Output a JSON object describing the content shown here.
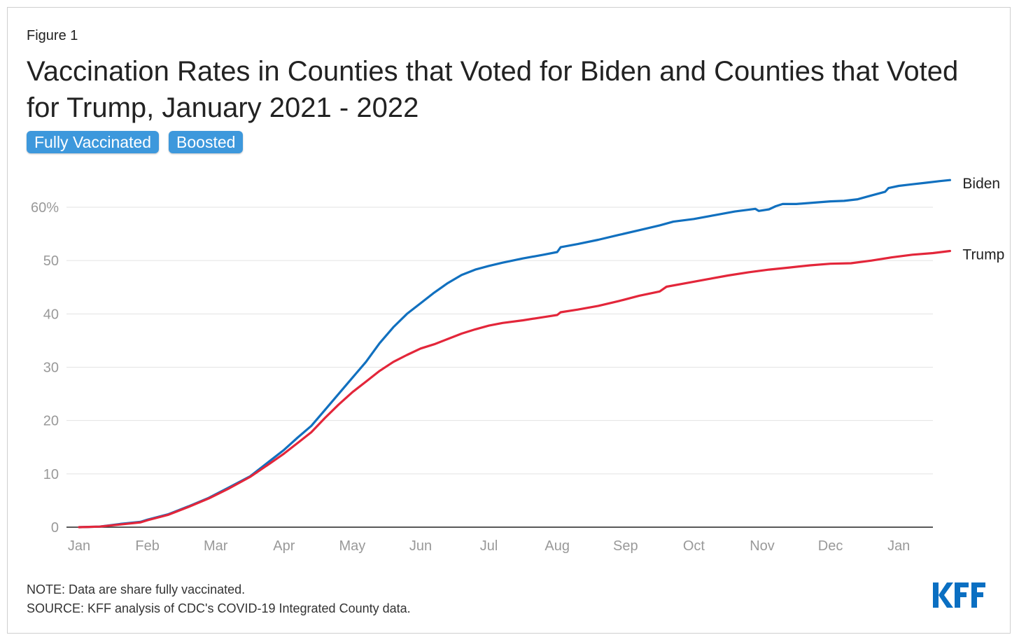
{
  "figure_label": "Figure 1",
  "tabs": [
    {
      "label": "Fully Vaccinated"
    },
    {
      "label": "Boosted"
    }
  ],
  "notes": {
    "note": "NOTE: Data are share fully vaccinated.",
    "source": "SOURCE: KFF analysis of CDC's COVID-19 Integrated County data."
  },
  "logo": {
    "text": "KFF",
    "color": "#0a6fc2"
  },
  "colors": {
    "biden": "#1170bf",
    "trump": "#e3263a",
    "grid": "#e3e3e3",
    "axis": "#222222",
    "tick": "#999999"
  },
  "chart_data": {
    "type": "line",
    "title": "Vaccination Rates in Counties that Voted for Biden and Counties that Voted for Trump, January 2021 - 2022",
    "xlabel": "",
    "ylabel": "",
    "ylim": [
      0,
      60
    ],
    "yticks": [
      {
        "value": 0,
        "label": "0"
      },
      {
        "value": 10,
        "label": "10"
      },
      {
        "value": 20,
        "label": "20"
      },
      {
        "value": 30,
        "label": "30"
      },
      {
        "value": 40,
        "label": "40"
      },
      {
        "value": 50,
        "label": "50"
      },
      {
        "value": 60,
        "label": "60%"
      }
    ],
    "xticks": [
      "Jan",
      "Feb",
      "Mar",
      "Apr",
      "May",
      "Jun",
      "Jul",
      "Aug",
      "Sep",
      "Oct",
      "Nov",
      "Dec",
      "Jan"
    ],
    "x_unit": "months since Jan 2021",
    "grid": true,
    "legend": "end-of-line labels",
    "series": [
      {
        "name": "Biden",
        "color": "#1170bf",
        "points": [
          [
            0,
            0
          ],
          [
            0.3,
            0.1
          ],
          [
            0.6,
            0.6
          ],
          [
            0.9,
            1.0
          ],
          [
            1.0,
            1.4
          ],
          [
            1.3,
            2.4
          ],
          [
            1.6,
            3.9
          ],
          [
            1.9,
            5.5
          ],
          [
            2.2,
            7.5
          ],
          [
            2.5,
            9.5
          ],
          [
            2.8,
            12.5
          ],
          [
            3.0,
            14.5
          ],
          [
            3.2,
            16.8
          ],
          [
            3.4,
            19.0
          ],
          [
            3.6,
            22.0
          ],
          [
            3.8,
            25.0
          ],
          [
            4.0,
            28.0
          ],
          [
            4.2,
            31.0
          ],
          [
            4.4,
            34.5
          ],
          [
            4.6,
            37.5
          ],
          [
            4.8,
            40.0
          ],
          [
            5.0,
            42.0
          ],
          [
            5.2,
            44.0
          ],
          [
            5.4,
            45.8
          ],
          [
            5.6,
            47.3
          ],
          [
            5.8,
            48.3
          ],
          [
            6.0,
            49.0
          ],
          [
            6.2,
            49.6
          ],
          [
            6.5,
            50.4
          ],
          [
            6.8,
            51.1
          ],
          [
            7.0,
            51.6
          ],
          [
            7.05,
            52.5
          ],
          [
            7.3,
            53.1
          ],
          [
            7.6,
            53.9
          ],
          [
            7.9,
            54.8
          ],
          [
            8.2,
            55.7
          ],
          [
            8.5,
            56.6
          ],
          [
            8.7,
            57.3
          ],
          [
            9.0,
            57.8
          ],
          [
            9.3,
            58.5
          ],
          [
            9.6,
            59.2
          ],
          [
            9.9,
            59.7
          ],
          [
            9.95,
            59.3
          ],
          [
            10.1,
            59.6
          ],
          [
            10.2,
            60.2
          ],
          [
            10.3,
            60.6
          ],
          [
            10.5,
            60.6
          ],
          [
            10.8,
            60.9
          ],
          [
            11.0,
            61.1
          ],
          [
            11.2,
            61.2
          ],
          [
            11.4,
            61.5
          ],
          [
            11.6,
            62.2
          ],
          [
            11.8,
            62.9
          ],
          [
            11.85,
            63.6
          ],
          [
            12.0,
            64.0
          ],
          [
            12.2,
            64.3
          ],
          [
            12.4,
            64.6
          ],
          [
            12.6,
            64.9
          ],
          [
            12.75,
            65.1
          ]
        ]
      },
      {
        "name": "Trump",
        "color": "#e3263a",
        "points": [
          [
            0,
            0
          ],
          [
            0.3,
            0.1
          ],
          [
            0.6,
            0.5
          ],
          [
            0.9,
            0.9
          ],
          [
            1.0,
            1.3
          ],
          [
            1.3,
            2.3
          ],
          [
            1.6,
            3.8
          ],
          [
            1.9,
            5.4
          ],
          [
            2.2,
            7.3
          ],
          [
            2.5,
            9.4
          ],
          [
            2.8,
            12.0
          ],
          [
            3.0,
            13.8
          ],
          [
            3.2,
            15.8
          ],
          [
            3.4,
            17.8
          ],
          [
            3.6,
            20.5
          ],
          [
            3.8,
            23.0
          ],
          [
            4.0,
            25.3
          ],
          [
            4.2,
            27.3
          ],
          [
            4.4,
            29.3
          ],
          [
            4.6,
            31.0
          ],
          [
            4.8,
            32.3
          ],
          [
            5.0,
            33.5
          ],
          [
            5.2,
            34.3
          ],
          [
            5.4,
            35.3
          ],
          [
            5.6,
            36.3
          ],
          [
            5.8,
            37.1
          ],
          [
            6.0,
            37.8
          ],
          [
            6.2,
            38.3
          ],
          [
            6.5,
            38.8
          ],
          [
            6.8,
            39.4
          ],
          [
            7.0,
            39.8
          ],
          [
            7.05,
            40.3
          ],
          [
            7.3,
            40.8
          ],
          [
            7.6,
            41.5
          ],
          [
            7.9,
            42.4
          ],
          [
            8.2,
            43.4
          ],
          [
            8.5,
            44.2
          ],
          [
            8.6,
            45.1
          ],
          [
            8.9,
            45.8
          ],
          [
            9.2,
            46.5
          ],
          [
            9.5,
            47.2
          ],
          [
            9.8,
            47.8
          ],
          [
            10.1,
            48.3
          ],
          [
            10.4,
            48.7
          ],
          [
            10.7,
            49.1
          ],
          [
            11.0,
            49.4
          ],
          [
            11.3,
            49.5
          ],
          [
            11.6,
            50.0
          ],
          [
            11.9,
            50.6
          ],
          [
            12.2,
            51.1
          ],
          [
            12.5,
            51.4
          ],
          [
            12.75,
            51.8
          ]
        ]
      }
    ]
  }
}
